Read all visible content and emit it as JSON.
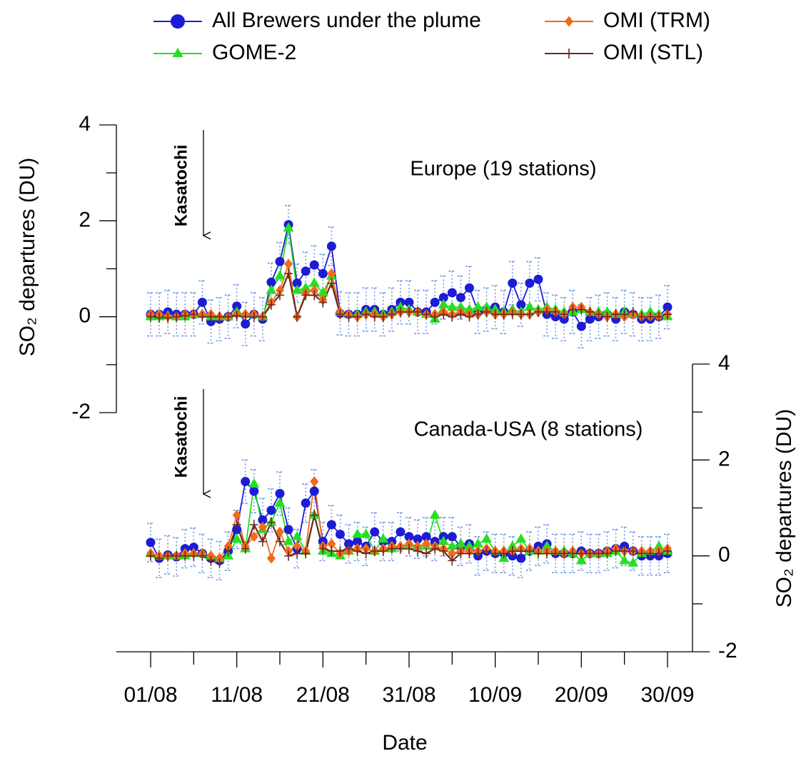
{
  "chart_data": [
    {
      "type": "line",
      "title": "Europe (19 stations)",
      "annotation": "Kasatochi",
      "ylabel": "SO₂ departures (DU)",
      "y_axis_side": "left",
      "ylim": [
        -2,
        4
      ],
      "yticks": [
        -2,
        0,
        2,
        4
      ],
      "series": [
        {
          "name": "All Brewers under the plume",
          "color": "#1c1cd6",
          "marker": "circle",
          "error_color": "#6f9be8",
          "values": [
            0.05,
            0.05,
            0.1,
            0.05,
            0.05,
            0.05,
            0.3,
            -0.1,
            -0.05,
            0,
            0.22,
            -0.15,
            0.05,
            -0.05,
            0.72,
            1.15,
            1.92,
            0.7,
            0.95,
            1.08,
            0.9,
            1.47,
            0.07,
            0.05,
            0.05,
            0.15,
            0.15,
            0.05,
            0.15,
            0.3,
            0.3,
            0.1,
            0.1,
            0.3,
            0.4,
            0.5,
            0.4,
            0.6,
            0.1,
            0.15,
            0.2,
            0.1,
            0.7,
            0.25,
            0.7,
            0.78,
            0.05,
            0,
            -0.05,
            0.1,
            -0.2,
            -0.05,
            0,
            0.05,
            -0.05,
            0.1,
            0.05,
            -0.05,
            -0.05,
            0,
            0.2
          ],
          "errors": [
            0.45,
            0.45,
            0.45,
            0.45,
            0.45,
            0.45,
            0.45,
            0.45,
            0.45,
            0.45,
            0.45,
            0.45,
            0.45,
            0.45,
            0.4,
            0.4,
            0.4,
            0.4,
            0.4,
            0.4,
            0.4,
            0.4,
            0.45,
            0.45,
            0.45,
            0.45,
            0.45,
            0.45,
            0.45,
            0.45,
            0.45,
            0.45,
            0.45,
            0.45,
            0.45,
            0.45,
            0.45,
            0.45,
            0.45,
            0.45,
            0.45,
            0.45,
            0.45,
            0.45,
            0.45,
            0.45,
            0.45,
            0.45,
            0.45,
            0.45,
            0.45,
            0.45,
            0.45,
            0.45,
            0.45,
            0.45,
            0.45,
            0.45,
            0.45,
            0.45,
            0.45
          ]
        },
        {
          "name": "GOME-2",
          "color": "#22e022",
          "marker": "triangle",
          "values": [
            0,
            0,
            0.02,
            0,
            0,
            0.05,
            0.05,
            0,
            0,
            0,
            0.1,
            0.05,
            0.05,
            0,
            0.55,
            0.85,
            1.85,
            0.55,
            0.6,
            0.7,
            0.5,
            0.85,
            0.1,
            0.05,
            0.05,
            0.1,
            0.1,
            0.05,
            0.1,
            0.2,
            0.15,
            0.1,
            0.05,
            -0.05,
            0.25,
            0.2,
            0.2,
            0.15,
            0.2,
            0.2,
            0.15,
            0.1,
            0.15,
            0.1,
            0.2,
            0.15,
            0.2,
            0.15,
            0.1,
            0.1,
            0.15,
            0.1,
            0.1,
            0.1,
            0.05,
            0.1,
            0.05,
            0.05,
            0.1,
            0.05,
            0
          ]
        },
        {
          "name": "OMI (TRM)",
          "color": "#f26a1b",
          "marker": "diamond",
          "values": [
            0.05,
            0.05,
            0,
            0,
            0.05,
            0.05,
            0.05,
            0.05,
            0,
            0,
            0.05,
            0.05,
            0.05,
            0,
            0.3,
            0.55,
            1.1,
            0,
            0.5,
            0.55,
            0.35,
            0.9,
            0.1,
            0.05,
            0,
            0.05,
            0.05,
            0,
            0.05,
            0.1,
            0.1,
            0.1,
            0.05,
            0.05,
            0.1,
            0.05,
            0.1,
            0.05,
            0.05,
            0.1,
            0.05,
            0.05,
            0.1,
            0.05,
            0.05,
            0.1,
            0.15,
            0.1,
            0.05,
            0.2,
            0.2,
            0.1,
            0.05,
            0,
            0.05,
            0,
            0.05,
            0,
            0,
            0,
            0.05
          ]
        },
        {
          "name": "OMI (STL)",
          "color": "#6b2a20",
          "marker": "plus",
          "values": [
            0,
            -0.02,
            -0.02,
            0,
            0.02,
            0.05,
            0,
            0,
            0,
            0,
            0.02,
            0,
            0,
            0,
            0.25,
            0.45,
            0.9,
            0,
            0.45,
            0.45,
            0.3,
            0.7,
            0.05,
            0,
            0,
            0.05,
            0,
            0,
            0.05,
            0.1,
            0.1,
            0.1,
            0.05,
            0,
            0.05,
            0,
            0.05,
            0,
            0.05,
            0.1,
            0.05,
            0.05,
            0.05,
            0.05,
            0.05,
            0.1,
            0.1,
            0.1,
            0.05,
            0.15,
            0.15,
            0.1,
            0.05,
            0,
            0.05,
            0.05,
            0.1,
            0,
            0,
            0,
            0.05
          ]
        }
      ]
    },
    {
      "type": "line",
      "title": "Canada-USA (8 stations)",
      "annotation": "Kasatochi",
      "ylabel": "SO₂ departures (DU)",
      "y_axis_side": "right",
      "xlabel": "Date",
      "categories": [
        "01/08",
        null,
        null,
        null,
        null,
        null,
        null,
        null,
        null,
        null,
        "11/08",
        null,
        null,
        null,
        null,
        null,
        null,
        null,
        null,
        null,
        "21/08",
        null,
        null,
        null,
        null,
        null,
        null,
        null,
        null,
        null,
        "31/08",
        null,
        null,
        null,
        null,
        null,
        null,
        null,
        null,
        null,
        "10/09",
        null,
        null,
        null,
        null,
        null,
        null,
        null,
        null,
        null,
        "20/09",
        null,
        null,
        null,
        null,
        null,
        null,
        null,
        null,
        null,
        "30/09"
      ],
      "ylim": [
        -2,
        4
      ],
      "yticks": [
        -2,
        0,
        2,
        4
      ],
      "series": [
        {
          "color": "#1c1cd6",
          "marker": "circle",
          "error_color": "#6f9be8",
          "values": [
            0.28,
            -0.05,
            0.02,
            -0.02,
            0.15,
            0.18,
            0.05,
            -0.05,
            -0.1,
            0.1,
            0.55,
            1.55,
            1.35,
            0.75,
            0.95,
            1.3,
            0.55,
            0.15,
            1.1,
            1.35,
            0.3,
            0.65,
            0.45,
            0.25,
            0.3,
            0.2,
            0.5,
            0.3,
            0.3,
            0.5,
            0.4,
            0.35,
            0.4,
            0.3,
            0.4,
            0.4,
            0.2,
            0.25,
            0,
            0.1,
            0.05,
            0.05,
            0,
            -0.05,
            0.1,
            0.2,
            0.25,
            0.05,
            0.05,
            0.05,
            0.1,
            0.05,
            0.05,
            0.1,
            0.15,
            0.2,
            0.1,
            0,
            0,
            0,
            0.05
          ],
          "errors": [
            0.4,
            0.4,
            0.4,
            0.4,
            0.4,
            0.4,
            0.4,
            0.4,
            0.4,
            0.4,
            0.4,
            0.45,
            0.45,
            0.45,
            0.45,
            0.45,
            0.45,
            0.4,
            0.4,
            0.45,
            0.4,
            0.4,
            0.4,
            0.4,
            0.4,
            0.4,
            0.4,
            0.4,
            0.4,
            0.4,
            0.4,
            0.4,
            0.4,
            0.4,
            0.4,
            0.4,
            0.4,
            0.4,
            0.4,
            0.4,
            0.4,
            0.4,
            0.4,
            0.4,
            0.4,
            0.4,
            0.4,
            0.4,
            0.4,
            0.4,
            0.4,
            0.4,
            0.4,
            0.4,
            0.4,
            0.4,
            0.4,
            0.4,
            0.4,
            0.4,
            0.4
          ]
        },
        {
          "color": "#22e022",
          "marker": "triangle",
          "values": [
            0.05,
            0,
            0,
            0,
            0,
            0.05,
            0.05,
            0,
            -0.05,
            0,
            0.35,
            0.15,
            1.5,
            0.55,
            0.7,
            1.1,
            0.3,
            0.4,
            0.1,
            0.85,
            0.1,
            0.05,
            0,
            0.1,
            0.45,
            0.45,
            0.1,
            0.35,
            0.15,
            0.2,
            0.25,
            0.2,
            0.2,
            0.85,
            0.3,
            0.2,
            0.25,
            0.2,
            0.25,
            0.35,
            0.1,
            -0.05,
            0.2,
            0.35,
            0.1,
            0.1,
            0.2,
            0.1,
            0.1,
            0.05,
            -0.1,
            0.05,
            0.05,
            0.05,
            0.1,
            -0.1,
            -0.15,
            0.05,
            0.1,
            0.2,
            0.1
          ]
        },
        {
          "color": "#f26a1b",
          "marker": "diamond",
          "values": [
            0.05,
            0,
            0,
            0,
            0.05,
            0.05,
            0.05,
            0,
            -0.05,
            0.2,
            0.85,
            0.2,
            0.4,
            0.6,
            -0.05,
            0.5,
            0.1,
            0.2,
            0.1,
            1.55,
            0.2,
            0.25,
            0.05,
            0.1,
            0.15,
            0.15,
            0.1,
            0.15,
            0.2,
            0.2,
            0.25,
            0.2,
            0.25,
            0.2,
            0.15,
            0.05,
            0.1,
            0.1,
            0.1,
            0.15,
            0.1,
            0.1,
            0.1,
            0.15,
            0.15,
            0.1,
            0.1,
            0.1,
            0.05,
            0.1,
            0.05,
            0.05,
            0.05,
            0.1,
            0.15,
            0.1,
            0.1,
            0.1,
            0.1,
            0.1,
            0.15
          ]
        },
        {
          "color": "#6b2a20",
          "marker": "plus",
          "values": [
            0,
            -0.05,
            0,
            0,
            0,
            0,
            0,
            -0.1,
            -0.15,
            0.1,
            0.65,
            0.15,
            0.65,
            0.3,
            0.7,
            0.3,
            0,
            0.05,
            0.05,
            0.85,
            0.15,
            0.1,
            0.1,
            0.15,
            0.1,
            0.05,
            0.1,
            0.1,
            0.15,
            0.15,
            0.15,
            0.1,
            0.05,
            0.15,
            0.1,
            -0.1,
            0.05,
            0.05,
            0.05,
            0.1,
            0.05,
            0.05,
            0.1,
            0.1,
            0.1,
            0.05,
            0.05,
            0.05,
            0.05,
            0.05,
            0.05,
            0.05,
            0.05,
            0.05,
            0.1,
            0.1,
            0.1,
            0.05,
            0.05,
            0.05,
            0.1
          ]
        }
      ]
    }
  ]
}
